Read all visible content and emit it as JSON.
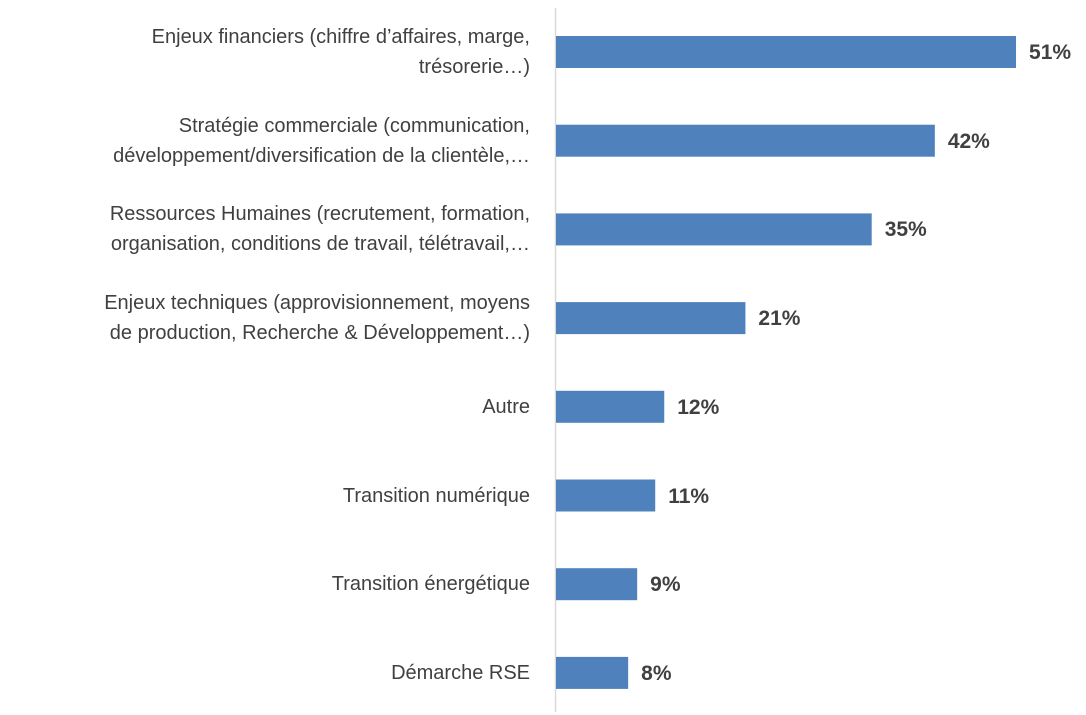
{
  "chart_data": {
    "type": "bar",
    "orientation": "horizontal",
    "categories": [
      "Enjeux financiers (chiffre d’affaires, marge,\ntrésorerie…)",
      "Stratégie commerciale (communication,\ndéveloppement/diversification de la clientèle,…",
      "Ressources Humaines (recrutement, formation,\norganisation, conditions de travail, télétravail,…",
      "Enjeux techniques (approvisionnement, moyens\nde production, Recherche & Développement…)",
      "Autre",
      "Transition numérique",
      "Transition énergétique",
      "Démarche RSE"
    ],
    "values": [
      51,
      42,
      35,
      21,
      12,
      11,
      9,
      8
    ],
    "value_labels": [
      "51%",
      "42%",
      "35%",
      "21%",
      "12%",
      "11%",
      "9%",
      "8%"
    ],
    "color": "#4f81bd"
  }
}
